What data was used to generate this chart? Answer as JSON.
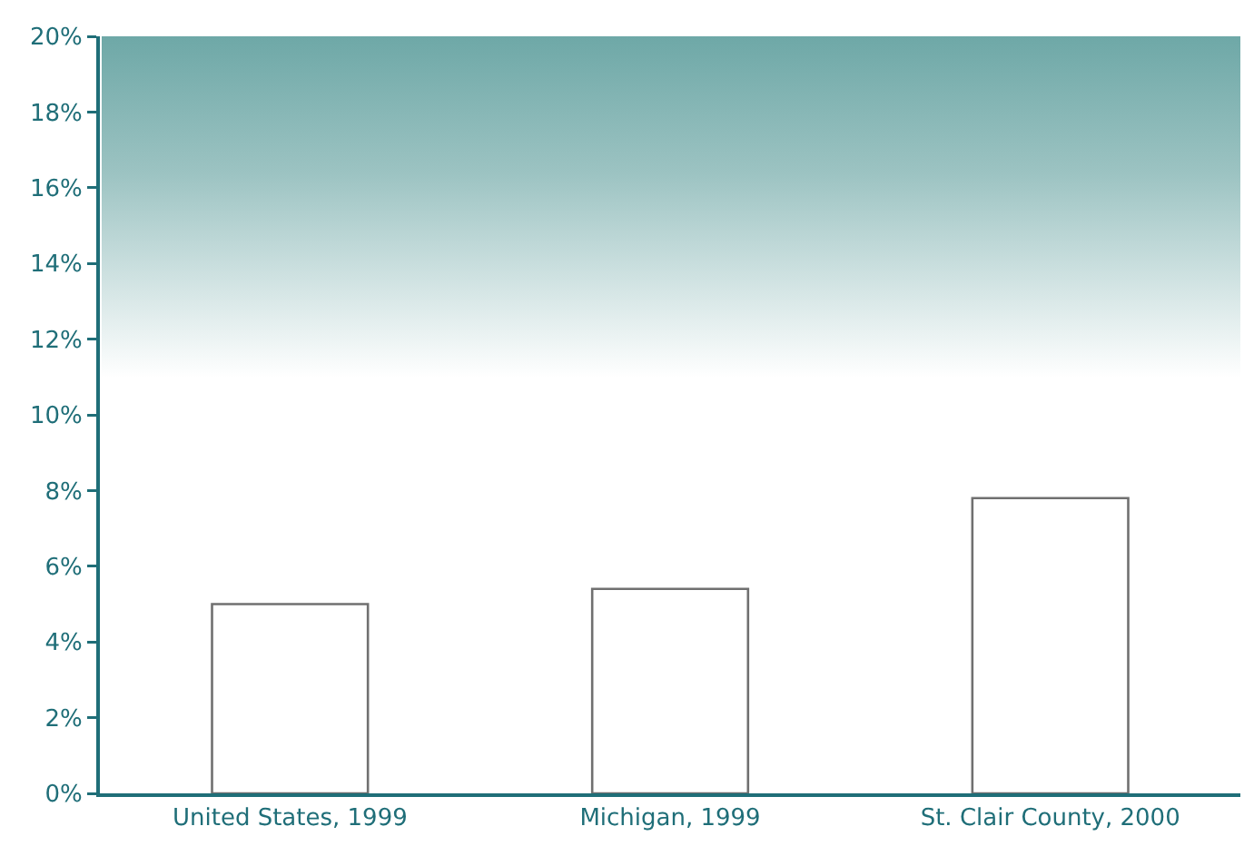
{
  "chart_data": {
    "type": "bar",
    "categories": [
      "United States, 1999",
      "Michigan, 1999",
      "St. Clair County, 2000"
    ],
    "values": [
      5.0,
      5.4,
      7.8
    ],
    "color": "#ffffff",
    "ylim": [
      0,
      20
    ],
    "yticks": [
      {
        "value": 0,
        "label": "0%"
      },
      {
        "value": 2,
        "label": "2%"
      },
      {
        "value": 4,
        "label": "4%"
      },
      {
        "value": 6,
        "label": "6%"
      },
      {
        "value": 8,
        "label": "8%"
      },
      {
        "value": 10,
        "label": "10%"
      },
      {
        "value": 12,
        "label": "12%"
      },
      {
        "value": 14,
        "label": "14%"
      },
      {
        "value": 16,
        "label": "16%"
      },
      {
        "value": 18,
        "label": "18%"
      },
      {
        "value": 20,
        "label": "20%"
      }
    ],
    "grid": false
  }
}
